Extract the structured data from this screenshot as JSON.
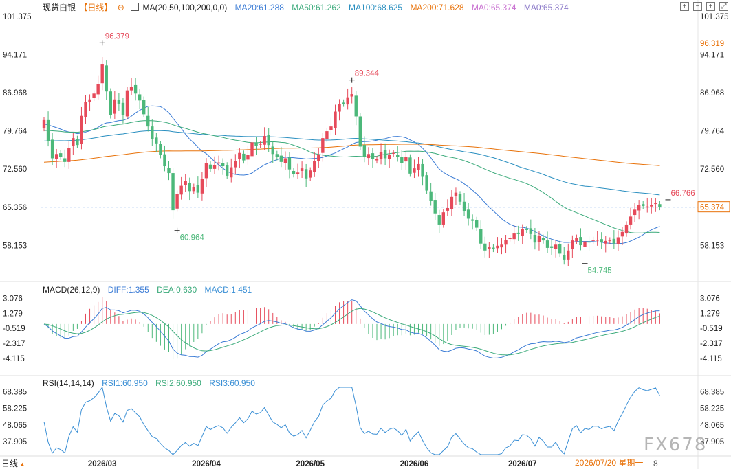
{
  "header": {
    "symbol": "现货白银",
    "period_label": "【日线】",
    "ma_label": "MA(20,50,100,200,0,0)",
    "ma20": "MA20:61.288",
    "ma50": "MA50:61.262",
    "ma100": "MA100:68.625",
    "ma200": "MA200:71.628",
    "ma0a": "MA0:65.374",
    "ma0b": "MA0:65.374"
  },
  "macd_header": {
    "label": "MACD(26,12,9)",
    "diff": "DIFF:1.355",
    "dea": "DEA:0.630",
    "macd": "MACD:1.451"
  },
  "rsi_header": {
    "label": "RSI(14,14,14)",
    "rsi1": "RSI1:60.950",
    "rsi2": "RSI2:60.950",
    "rsi3": "RSI3:60.950"
  },
  "footer": {
    "period_button": "日线",
    "date_tag": "2026/07/20 星期一",
    "date_tag_tail": "8",
    "watermark": "FX678"
  },
  "colors": {
    "up": "#e64a5a",
    "down": "#4cb87a",
    "ma20": "#3a7bd5",
    "ma50": "#3aaa7a",
    "ma100": "#2a8fc0",
    "ma200": "#e8720a",
    "diff": "#3a7bd5",
    "dea": "#3aaa7a",
    "rsi": "#3a8fd5",
    "accent": "#e8720a"
  },
  "chart_data": [
    {
      "type": "candlestick",
      "title": "现货白银 日线",
      "y_ticks": [
        "101.375",
        "94.171",
        "86.968",
        "79.764",
        "72.560",
        "65.356",
        "58.153"
      ],
      "ylim": [
        51.6,
        102.9
      ],
      "x_ticks": [
        "2026/03",
        "2026/04",
        "2026/05",
        "2026/06",
        "2026/07"
      ],
      "x_tick_index": [
        14,
        39,
        64,
        89,
        115
      ],
      "last_price": "65.374",
      "last_price_value": 65.374,
      "right_marker": "96.319",
      "right_marker_value": 96.319,
      "annotations": [
        {
          "text": "96.379",
          "index": 14,
          "value": 96.379,
          "color": "#e64a5a"
        },
        {
          "text": "60.964",
          "index": 32,
          "value": 60.964,
          "color": "#4cb87a"
        },
        {
          "text": "89.344",
          "index": 74,
          "value": 89.344,
          "color": "#e64a5a"
        },
        {
          "text": "54.745",
          "index": 130,
          "value": 54.745,
          "color": "#4cb87a"
        },
        {
          "text": "66.766",
          "index": 150,
          "value": 66.766,
          "color": "#e64a5a"
        }
      ],
      "closes": [
        81.8,
        77.8,
        74.6,
        75.4,
        74.9,
        73.9,
        76.6,
        78.4,
        77.1,
        82.6,
        85.2,
        85.7,
        86.8,
        88.6,
        92.4,
        87.2,
        82.7,
        85.7,
        84.9,
        82.8,
        87.4,
        88.1,
        86.8,
        85.5,
        82.9,
        80.6,
        78.2,
        77.4,
        75.2,
        73.1,
        71.8,
        64.8,
        67.9,
        69.4,
        70.3,
        68.4,
        69.2,
        68.1,
        70.7,
        73.7,
        72.6,
        73.3,
        73.8,
        73.1,
        71.3,
        72.9,
        74.1,
        75.6,
        74.2,
        75.3,
        77.6,
        76.9,
        77.3,
        78.8,
        77.1,
        75.4,
        74.8,
        73.9,
        74.6,
        72.5,
        71.6,
        71.9,
        72.7,
        70.8,
        72.3,
        74.1,
        75.3,
        78.4,
        79.7,
        80.6,
        83.4,
        84.8,
        84.9,
        86.1,
        86.7,
        82.5,
        76.8,
        74.8,
        75.4,
        74.5,
        74.4,
        75.8,
        74.6,
        75.3,
        75.6,
        74.9,
        73.7,
        74.9,
        71.7,
        72.7,
        73.5,
        71.1,
        68.5,
        66.6,
        64.2,
        62.1,
        64.4,
        65.2,
        67.3,
        68.1,
        66.4,
        64.6,
        63.2,
        62.8,
        61.5,
        58.5,
        57.2,
        57.9,
        57.5,
        58.1,
        58.3,
        59.2,
        59.5,
        60.4,
        60.3,
        61.2,
        61.1,
        60.3,
        58.7,
        59.9,
        59.1,
        57.7,
        57.7,
        58.3,
        56.6,
        55.5,
        57.2,
        59.1,
        59.6,
        58.2,
        58.9,
        58.7,
        59.2,
        59.2,
        58.8,
        59.0,
        59.1,
        58.5,
        59.7,
        60.7,
        62.1,
        63.6,
        64.9,
        65.8,
        65.6,
        65.5,
        65.8,
        66.1,
        65.4
      ]
    },
    {
      "type": "bar",
      "title": "MACD(26,12,9)",
      "y_ticks": [
        "3.076",
        "1.279",
        "-0.519",
        "-2.317",
        "-4.115"
      ],
      "ylim": [
        -6.0,
        3.6
      ],
      "series": [
        {
          "name": "DIFF",
          "value": 1.355
        },
        {
          "name": "DEA",
          "value": 0.63
        },
        {
          "name": "MACD",
          "value": 1.451
        }
      ]
    },
    {
      "type": "line",
      "title": "RSI(14,14,14)",
      "y_ticks": [
        "68.385",
        "58.225",
        "48.065",
        "37.905"
      ],
      "ylim": [
        30.0,
        71.0
      ],
      "series": [
        {
          "name": "RSI1",
          "value": 60.95
        },
        {
          "name": "RSI2",
          "value": 60.95
        },
        {
          "name": "RSI3",
          "value": 60.95
        }
      ]
    }
  ]
}
